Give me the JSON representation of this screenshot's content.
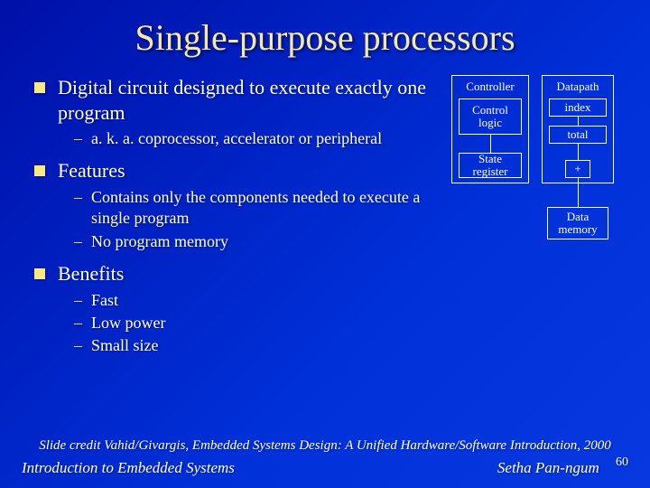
{
  "title": "Single-purpose processors",
  "bullets": [
    {
      "text": "Digital circuit designed to execute exactly one program",
      "subs": [
        "a. k. a. coprocessor, accelerator or peripheral"
      ]
    },
    {
      "text": "Features",
      "subs": [
        "Contains only the components needed to execute a single program",
        "No program memory"
      ]
    },
    {
      "text": "Benefits",
      "subs": [
        "Fast",
        "Low power",
        "Small size"
      ]
    }
  ],
  "diagram": {
    "controller": "Controller",
    "datapath": "Datapath",
    "control_logic": "Control logic",
    "state_register": "State register",
    "index": "index",
    "total": "total",
    "plus": "+",
    "data_memory": "Data memory"
  },
  "footer": {
    "credit": "Slide credit Vahid/Givargis, Embedded Systems Design: A Unified Hardware/Software Introduction, 2000",
    "left": "Introduction to Embedded Systems",
    "right": "Setha Pan-ngum",
    "page": "60"
  },
  "colors": {
    "title_color": "#f8e8a0",
    "bullet_color": "#f8e880",
    "text_color": "#ffffff",
    "bg_from": "#0010a8",
    "bg_to": "#0838e0",
    "box_border": "#ffffff"
  }
}
